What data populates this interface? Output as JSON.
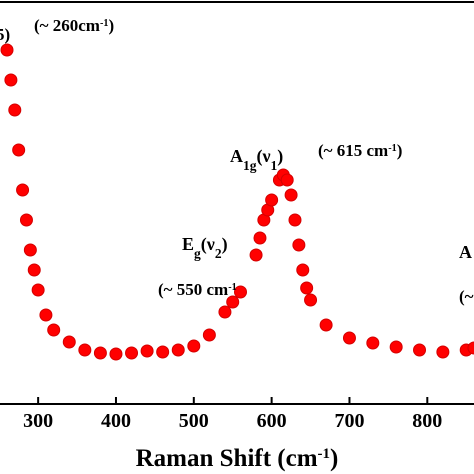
{
  "chart_data": {
    "type": "scatter",
    "x_label_runs": [
      {
        "text": "Raman Shift (cm"
      },
      {
        "text": "-1",
        "shift": "super"
      },
      {
        "text": ")"
      }
    ],
    "annotations": [
      {
        "runs": [
          {
            "text": "5)"
          }
        ]
      },
      {
        "runs": [
          {
            "text": "(~ 260cm"
          },
          {
            "text": "-1",
            "shift": "super"
          },
          {
            "text": ")"
          }
        ]
      },
      {
        "runs": [
          {
            "text": "A"
          },
          {
            "text": "1g",
            "shift": "sub"
          },
          {
            "text": "(ν"
          },
          {
            "text": "1",
            "shift": "sub"
          },
          {
            "text": ")"
          }
        ]
      },
      {
        "runs": [
          {
            "text": "(~ 615 cm"
          },
          {
            "text": "-1",
            "shift": "super"
          },
          {
            "text": ")"
          }
        ]
      },
      {
        "runs": [
          {
            "text": "E"
          },
          {
            "text": "g",
            "shift": "sub"
          },
          {
            "text": "(ν"
          },
          {
            "text": "2",
            "shift": "sub"
          },
          {
            "text": ")"
          }
        ]
      },
      {
        "runs": [
          {
            "text": "(~  550 cm"
          },
          {
            "text": "-1",
            "shift": "super"
          }
        ]
      },
      {
        "runs": [
          {
            "text": "A"
          }
        ]
      },
      {
        "runs": [
          {
            "text": "(~"
          }
        ]
      }
    ],
    "color": "#ff0000",
    "x": [
      260,
      265,
      270,
      275,
      280,
      285,
      290,
      295,
      300,
      310,
      320,
      340,
      360,
      380,
      400,
      420,
      440,
      460,
      480,
      500,
      520,
      540,
      550,
      560,
      580,
      585,
      590,
      595,
      600,
      610,
      615,
      620,
      625,
      630,
      635,
      640,
      645,
      650,
      670,
      700,
      730,
      760,
      790,
      820,
      850,
      860
    ],
    "values": [
      88.5,
      81,
      73.5,
      63.5,
      53.5,
      46,
      38.5,
      33.5,
      28.5,
      22.25,
      18.5,
      15.5,
      13.5,
      12.75,
      12.5,
      12.75,
      13.25,
      13,
      13.5,
      14.5,
      17.25,
      23,
      25.5,
      28,
      37.25,
      41.5,
      46,
      48.5,
      51,
      56,
      57.25,
      56,
      52.25,
      46,
      39.75,
      33.5,
      29,
      26,
      19.75,
      16.5,
      15.25,
      14.25,
      13.5,
      13,
      13.5,
      14
    ],
    "xlim": [
      251,
      860
    ],
    "ylim": [
      0,
      101
    ],
    "xticks": [
      300,
      400,
      500,
      600,
      700,
      800
    ]
  }
}
